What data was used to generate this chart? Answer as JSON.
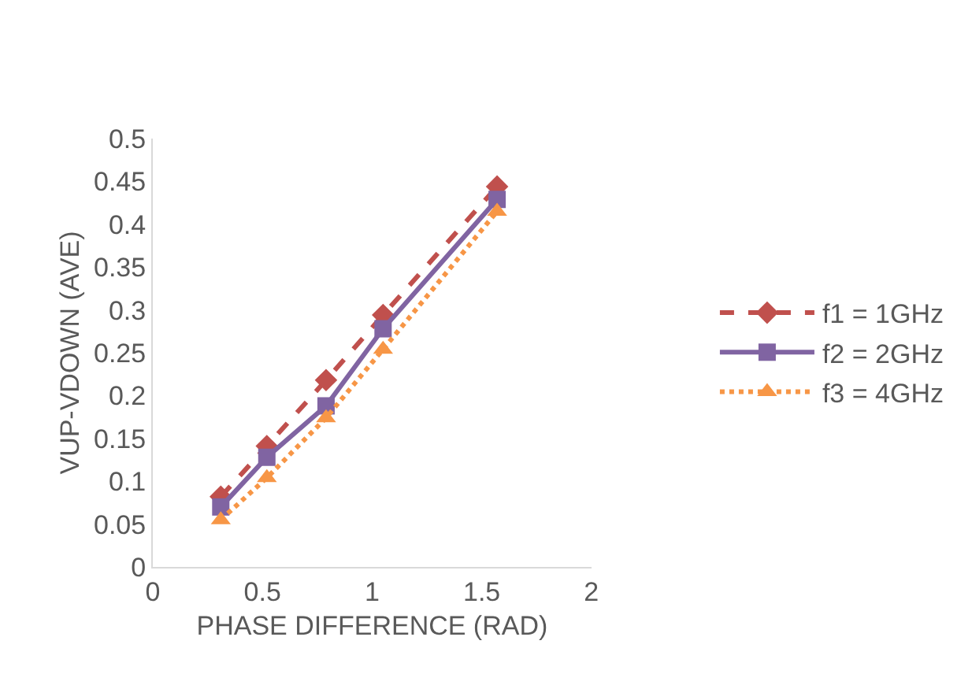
{
  "chart_data": {
    "type": "line",
    "xlabel": "PHASE DIFFERENCE (RAD)",
    "ylabel": "VUP-VDOWN (AVE)",
    "x": [
      0.31,
      0.52,
      0.79,
      1.05,
      1.57
    ],
    "series": [
      {
        "name": "f1 = 1GHz",
        "color": "#c0504d",
        "values": [
          0.082,
          0.141,
          0.218,
          0.294,
          0.444
        ],
        "marker": "diamond",
        "line_style": "dashed"
      },
      {
        "name": "f2 = 2GHz",
        "color": "#8064a2",
        "values": [
          0.07,
          0.128,
          0.188,
          0.278,
          0.429
        ],
        "marker": "square",
        "line_style": "solid"
      },
      {
        "name": "f3 = 4GHz",
        "color": "#f79646",
        "values": [
          0.055,
          0.104,
          0.174,
          0.254,
          0.415
        ],
        "marker": "triangle",
        "line_style": "dotted"
      }
    ],
    "xlim": [
      0,
      2
    ],
    "xticks": [
      0,
      {
        "value": 0.5,
        "label": "0.5"
      },
      1,
      1.5,
      2
    ],
    "ylim": [
      0,
      0.5
    ],
    "yticks": [
      0,
      0.05,
      0.1,
      0.15,
      0.2,
      0.25,
      0.3,
      0.35,
      0.4,
      0.45,
      0.5
    ],
    "grid": false,
    "legend": "right"
  }
}
